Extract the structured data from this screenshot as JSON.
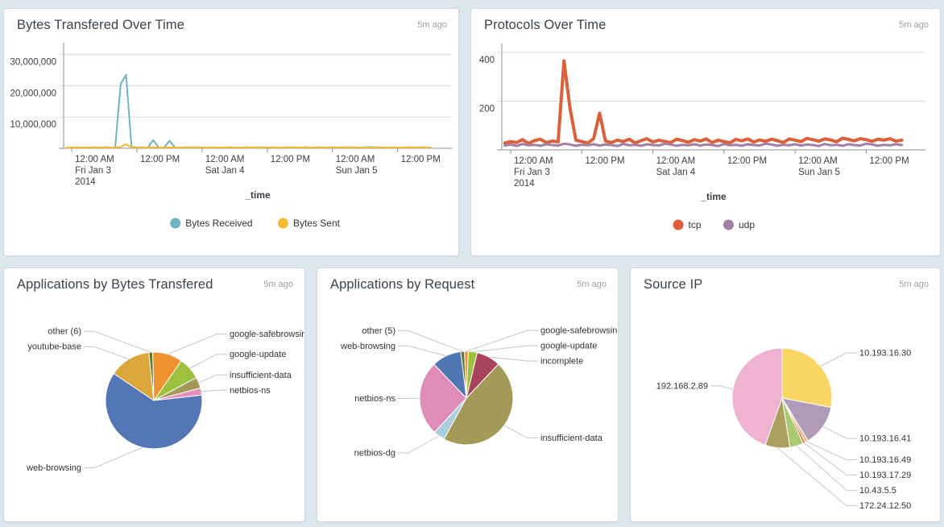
{
  "page": {
    "background": "#dce8ec",
    "panel_background": "#ffffff"
  },
  "panels": [
    {
      "title": "Bytes Transfered Over Time",
      "ago": "5m ago"
    },
    {
      "title": "Protocols Over Time",
      "ago": "5m ago"
    },
    {
      "title": "Applications by Bytes Transfered",
      "ago": "5m ago"
    },
    {
      "title": "Applications by Request",
      "ago": "5m ago"
    },
    {
      "title": "Source IP",
      "ago": "5m ago"
    }
  ],
  "chart_data": [
    {
      "type": "line",
      "title": "Bytes Transfered Over Time",
      "xlabel": "_time",
      "x_unit": "hours from Fri Jan 3 2014 12:00 AM",
      "x_domain": [
        -1.5,
        70
      ],
      "ylim": [
        0,
        32500000
      ],
      "grid": "horizontal",
      "legend_position": "bottom-center",
      "y_ticks": [
        {
          "v": 10000000,
          "label": "10,000,000"
        },
        {
          "v": 20000000,
          "label": "20,000,000"
        },
        {
          "v": 30000000,
          "label": "30,000,000"
        }
      ],
      "x_ticks": [
        {
          "h": 0,
          "label": "12:00 AM",
          "sub": [
            "Fri Jan 3",
            "2014"
          ]
        },
        {
          "h": 12,
          "label": "12:00 PM",
          "sub": []
        },
        {
          "h": 24,
          "label": "12:00 AM",
          "sub": [
            "Sat Jan 4"
          ]
        },
        {
          "h": 36,
          "label": "12:00 PM",
          "sub": []
        },
        {
          "h": 48,
          "label": "12:00 AM",
          "sub": [
            "Sun Jan 5"
          ]
        },
        {
          "h": 60,
          "label": "12:00 PM",
          "sub": []
        }
      ],
      "series": [
        {
          "name": "Bytes Received",
          "color": "#6db5c2",
          "stroke_width": 2,
          "start_hour": -1,
          "step_hours": 1,
          "values": [
            240000,
            210000,
            320000,
            180000,
            260000,
            300000,
            220000,
            350000,
            280000,
            240000,
            20500000,
            23500000,
            500000,
            260000,
            300000,
            240000,
            2600000,
            280000,
            240000,
            2400000,
            260000,
            220000,
            300000,
            260000,
            320000,
            280000,
            240000,
            300000,
            260000,
            220000,
            340000,
            280000,
            240000,
            300000,
            260000,
            320000,
            280000,
            240000,
            300000,
            260000,
            220000,
            340000,
            280000,
            240000,
            300000,
            260000,
            320000,
            280000,
            240000,
            300000,
            260000,
            220000,
            340000,
            280000,
            240000,
            300000,
            380000,
            320000,
            280000,
            240000,
            300000,
            260000,
            220000,
            340000,
            280000,
            240000,
            300000,
            260000
          ]
        },
        {
          "name": "Bytes Sent",
          "color": "#f3bb2d",
          "stroke_width": 2,
          "start_hour": -1,
          "step_hours": 1,
          "values": [
            260000,
            230000,
            280000,
            240000,
            300000,
            260000,
            230000,
            290000,
            250000,
            270000,
            420000,
            1300000,
            300000,
            250000,
            280000,
            240000,
            300000,
            260000,
            230000,
            290000,
            250000,
            270000,
            240000,
            300000,
            260000,
            230000,
            290000,
            250000,
            270000,
            240000,
            310000,
            260000,
            230000,
            290000,
            250000,
            270000,
            240000,
            300000,
            260000,
            230000,
            290000,
            250000,
            270000,
            240000,
            300000,
            260000,
            230000,
            290000,
            250000,
            270000,
            240000,
            310000,
            260000,
            230000,
            290000,
            250000,
            270000,
            240000,
            300000,
            260000,
            230000,
            290000,
            250000,
            270000,
            240000,
            300000,
            260000,
            240000
          ]
        }
      ]
    },
    {
      "type": "line",
      "title": "Protocols Over Time",
      "xlabel": "_time",
      "x_unit": "hours from Fri Jan 3 2014 12:00 AM",
      "x_domain": [
        -1.5,
        70
      ],
      "ylim": [
        0,
        420
      ],
      "grid": "horizontal",
      "legend_position": "bottom-center",
      "y_ticks": [
        {
          "v": 200,
          "label": "200"
        },
        {
          "v": 400,
          "label": "400"
        }
      ],
      "x_ticks": [
        {
          "h": 0,
          "label": "12:00 AM",
          "sub": [
            "Fri Jan 3",
            "2014"
          ]
        },
        {
          "h": 12,
          "label": "12:00 PM",
          "sub": []
        },
        {
          "h": 24,
          "label": "12:00 AM",
          "sub": [
            "Sat Jan 4"
          ]
        },
        {
          "h": 36,
          "label": "12:00 PM",
          "sub": []
        },
        {
          "h": 48,
          "label": "12:00 AM",
          "sub": [
            "Sun Jan 5"
          ]
        },
        {
          "h": 60,
          "label": "12:00 PM",
          "sub": []
        }
      ],
      "series": [
        {
          "name": "tcp",
          "color": "#dc6039",
          "stroke_width": 4,
          "start_hour": -1,
          "step_hours": 1,
          "values": [
            28,
            34,
            30,
            42,
            26,
            38,
            44,
            30,
            36,
            33,
            365,
            172,
            40,
            34,
            28,
            46,
            150,
            36,
            30,
            40,
            34,
            44,
            28,
            38,
            46,
            32,
            40,
            35,
            30,
            44,
            38,
            31,
            42,
            36,
            45,
            30,
            40,
            34,
            29,
            43,
            37,
            45,
            32,
            41,
            35,
            44,
            38,
            30,
            45,
            40,
            34,
            47,
            42,
            36,
            45,
            41,
            33,
            48,
            43,
            37,
            46,
            42,
            35,
            44,
            40,
            46,
            36,
            40
          ]
        },
        {
          "name": "udp",
          "color": "#a27fa5",
          "stroke_width": 3,
          "start_hour": -1,
          "step_hours": 1,
          "values": [
            18,
            22,
            16,
            24,
            19,
            21,
            17,
            23,
            20,
            18,
            25,
            22,
            17,
            21,
            19,
            23,
            18,
            22,
            20,
            16,
            24,
            19,
            21,
            17,
            23,
            20,
            18,
            25,
            22,
            17,
            21,
            19,
            23,
            18,
            22,
            20,
            16,
            24,
            19,
            21,
            17,
            23,
            20,
            18,
            25,
            22,
            17,
            21,
            19,
            23,
            18,
            22,
            20,
            16,
            24,
            19,
            21,
            17,
            23,
            20,
            18,
            25,
            22,
            17,
            21,
            19,
            23,
            20
          ]
        }
      ]
    },
    {
      "type": "pie",
      "title": "Applications by Bytes Transfered",
      "unit": "percent (estimated from arc angles)",
      "start_angle_deg": 354,
      "slices": [
        {
          "label": "other (6)",
          "value": 1.3,
          "color": "#567b2c",
          "label_side": "left"
        },
        {
          "label": "google-safebrowsing",
          "value": 10.0,
          "color": "#f0922f",
          "label_side": "right"
        },
        {
          "label": "google-update",
          "value": 7.5,
          "color": "#9dc13c",
          "label_side": "right"
        },
        {
          "label": "insufficient-data",
          "value": 3.7,
          "color": "#a3985a",
          "label_side": "right"
        },
        {
          "label": "netbios-ns",
          "value": 2.4,
          "color": "#e48fb9",
          "label_side": "right"
        },
        {
          "label": "web-browsing",
          "value": 61.2,
          "color": "#5377b4",
          "label_side": "left"
        },
        {
          "label": "youtube-base",
          "value": 13.9,
          "color": "#dba73d",
          "label_side": "left"
        }
      ]
    },
    {
      "type": "pie",
      "title": "Applications by Request",
      "unit": "percent (estimated from arc angles)",
      "start_angle_deg": 353,
      "slices": [
        {
          "label": "other (5)",
          "value": 1.3,
          "color": "#567b2c",
          "label_side": "left"
        },
        {
          "label": "google-safebrowsing",
          "value": 1.3,
          "color": "#f0922f",
          "label_side": "right"
        },
        {
          "label": "google-update",
          "value": 3.1,
          "color": "#9dc13c",
          "label_side": "right"
        },
        {
          "label": "incomplete",
          "value": 8.3,
          "color": "#a8435c",
          "label_side": "right"
        },
        {
          "label": "insufficient-data",
          "value": 45.9,
          "color": "#a49a58",
          "label_side": "right"
        },
        {
          "label": "netbios-dg",
          "value": 4.0,
          "color": "#a9cfdf",
          "label_side": "left"
        },
        {
          "label": "netbios-ns",
          "value": 25.9,
          "color": "#e08cb8",
          "label_side": "left"
        },
        {
          "label": "web-browsing",
          "value": 10.2,
          "color": "#5076b4",
          "label_side": "left"
        }
      ]
    },
    {
      "type": "pie",
      "title": "Source IP",
      "unit": "percent (estimated from arc angles)",
      "start_angle_deg": 0,
      "slices": [
        {
          "label": "10.193.16.30",
          "value": 28.0,
          "color": "#f9d563",
          "label_side": "right"
        },
        {
          "label": "10.193.16.41",
          "value": 13.3,
          "color": "#b29bb9",
          "label_side": "right"
        },
        {
          "label": "10.193.16.49",
          "value": 1.0,
          "color": "#d8c18a",
          "label_side": "right"
        },
        {
          "label": "10.193.17.29",
          "value": 0.8,
          "color": "#e2703a",
          "label_side": "right"
        },
        {
          "label": "10.43.5.5",
          "value": 4.4,
          "color": "#a9c973",
          "label_side": "right"
        },
        {
          "label": "172.24.12.50",
          "value": 8.0,
          "color": "#aba05e",
          "label_side": "right"
        },
        {
          "label": "192.168.2.89",
          "value": 44.5,
          "color": "#efb2d0",
          "label_side": "left"
        }
      ]
    }
  ]
}
